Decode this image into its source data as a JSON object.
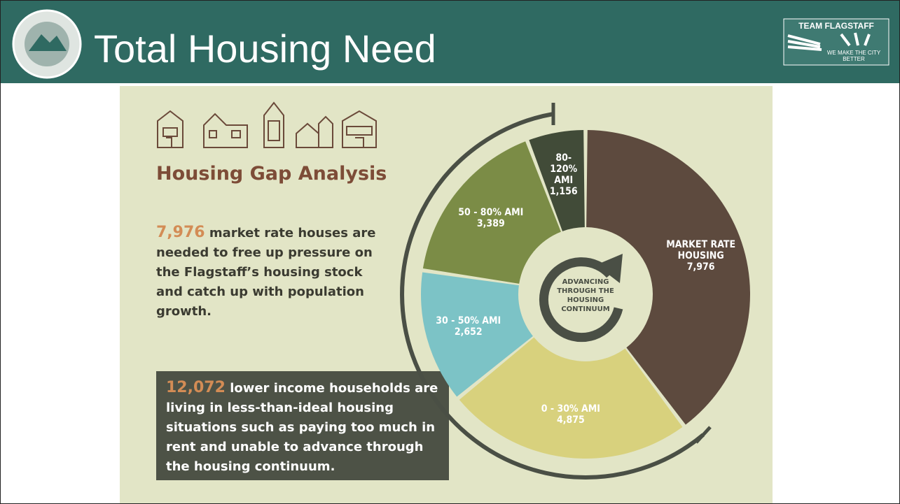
{
  "header": {
    "title": "Total Housing Need",
    "logo_title": "TEAM FLAGSTAFF",
    "logo_tagline": "WE MAKE THE CITY BETTER"
  },
  "infographic": {
    "heading": "Housing Gap Analysis",
    "market_note": {
      "highlight": "7,976",
      "text": "market rate houses are needed to free up pressure on the Flagstaff’s housing stock and catch up with population growth."
    },
    "lower_income_note": {
      "highlight": "12,072",
      "text": "lower income households are living in less-than-ideal housing situations such as paying too much in rent and unable to advance through the housing continuum."
    },
    "center_label": "ADVANCING THROUGH THE HOUSING CONTINUUM"
  },
  "chart_data": {
    "type": "donut",
    "categories": [
      "MARKET RATE HOUSING",
      "0 - 30% AMI",
      "30 - 50% AMI",
      "50 - 80% AMI",
      "80-120% AMI"
    ],
    "values": [
      7976,
      4875,
      2652,
      3389,
      1156
    ],
    "value_labels": [
      "7,976",
      "4,875",
      "2,652",
      "3,389",
      "1,156"
    ],
    "colors": [
      "#5d4a3e",
      "#d8d17d",
      "#7cc3c6",
      "#7b8c46",
      "#414b38"
    ]
  }
}
